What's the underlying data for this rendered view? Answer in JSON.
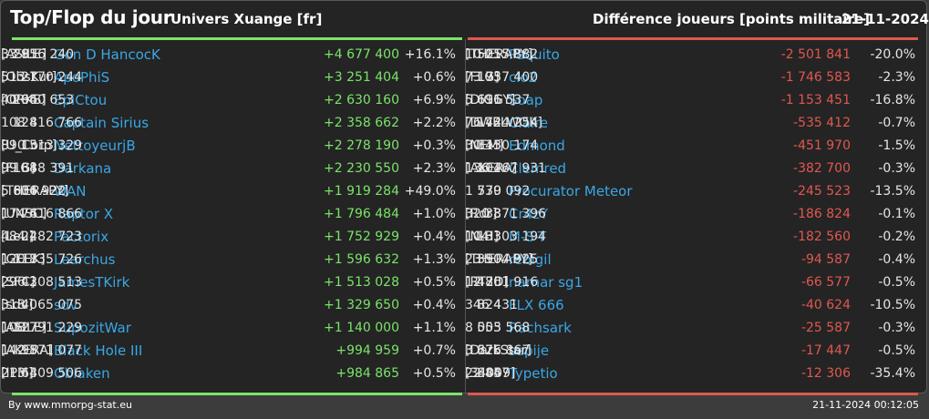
{
  "header": {
    "title": "Top/Flop du jour",
    "universe": "Univers Xuange [fr]",
    "metric": "Différence joueurs [points militaire]",
    "date": "21-11-2024"
  },
  "colors": {
    "gain": "#7be36a",
    "loss": "#e0584f",
    "link": "#3aa7e6"
  },
  "top": [
    {
      "rank": "295",
      "name": "Gon D HancocK",
      "alliance": "[ASILE]",
      "points": "33 816 240",
      "diff": "+4 677 400",
      "pct": "+16.1%"
    },
    {
      "rank": "21",
      "name": "ApoPhiS",
      "alliance": "[ObsKur]",
      "points": "513 770 244",
      "diff": "+3 251 404",
      "pct": "+0.6%"
    },
    {
      "rank": "264",
      "name": "EpiCtou",
      "alliance": "[ORKS]",
      "points": "40 960 653",
      "diff": "+2 630 160",
      "pct": "+6.9%"
    },
    {
      "rank": "128",
      "name": "Captain Sirius",
      "alliance": "",
      "points": "108 416 766",
      "diff": "+2 358 662",
      "pct": "+2.2%"
    },
    {
      "rank": "15",
      "name": "NettoyeurjB",
      "alliance": "[U_Corp]",
      "points": "890 313 329",
      "diff": "+2 278 190",
      "pct": "+0.3%"
    },
    {
      "rank": "138",
      "name": "Darkana",
      "alliance": "[FLG]",
      "points": "99 648 391",
      "diff": "+2 230 550",
      "pct": "+2.3%"
    },
    {
      "rank": "604",
      "name": "WAN",
      "alliance": "[THERAPY]",
      "points": "5 836 922",
      "diff": "+1 919 284",
      "pct": "+49.0%"
    },
    {
      "rank": "76",
      "name": "Raptor X",
      "alliance": "[UNSC]",
      "points": "174 416 866",
      "diff": "+1 796 484",
      "pct": "+1.0%"
    },
    {
      "rank": "24",
      "name": "Pactorix",
      "alliance": "[Leu]",
      "points": "484 282 723",
      "diff": "+1 752 929",
      "pct": "+0.4%"
    },
    {
      "rank": "117",
      "name": "Learchus",
      "alliance": "[GEEK]",
      "points": "120 835 726",
      "diff": "+1 596 632",
      "pct": "+1.3%"
    },
    {
      "rank": "42",
      "name": "JamesTKirk",
      "alliance": "[SFC]",
      "points": "296 308 513",
      "diff": "+1 513 028",
      "pct": "+0.5%"
    },
    {
      "rank": "40",
      "name": "sdv",
      "alliance": "[sdv]",
      "points": "318 065 075",
      "diff": "+1 329 650",
      "pct": "+0.4%"
    },
    {
      "rank": "127",
      "name": "SupozitWar",
      "alliance": "[ASILE]",
      "points": "108 791 229",
      "diff": "+1 140 000",
      "pct": "+1.1%"
    },
    {
      "rank": "98",
      "name": "Black Hole III",
      "alliance": "[AKERA]",
      "points": "142 571 077",
      "diff": "+994 959",
      "pct": "+0.7%"
    },
    {
      "rank": "64",
      "name": "Oblaken",
      "alliance": "[IPM]",
      "points": "213 309 506",
      "diff": "+984 865",
      "pct": "+0.5%"
    }
  ],
  "flop": [
    {
      "rank": "525",
      "name": "Paquito",
      "alliance": "[THERAPY]",
      "points": "10 015 882",
      "diff": "-2 501 841",
      "pct": "-20.0%"
    },
    {
      "rank": "175",
      "name": "clo2",
      "alliance": "[FLG]",
      "points": "73 937 400",
      "diff": "-1 746 583",
      "pct": "-2.3%"
    },
    {
      "rank": "611",
      "name": "Soap",
      "alliance": "[DIGGY]",
      "points": "5 696 537",
      "diff": "-1 153 451",
      "pct": "-16.8%"
    },
    {
      "rank": "172",
      "name": "Claire",
      "alliance": "[DWELWOK]",
      "points": "76 444 254",
      "diff": "-535 412",
      "pct": "-0.7%"
    },
    {
      "rank": "313",
      "name": "Edmond",
      "alliance": "[NEM]",
      "points": "30 450 174",
      "diff": "-451 970",
      "pct": "-1.5%"
    },
    {
      "rank": "104",
      "name": "Clemred",
      "alliance": "[AKERA]",
      "points": "136 267 931",
      "diff": "-382 700",
      "pct": "-0.3%"
    },
    {
      "rank": "739",
      "name": "Procurator Meteor",
      "alliance": "",
      "points": "1 570 092",
      "diff": "-245 523",
      "pct": "-13.5%"
    },
    {
      "rank": "38",
      "name": "Cr4zY",
      "alliance": "[Rdr]",
      "points": "320 371 396",
      "diff": "-186 824",
      "pct": "-0.1%"
    },
    {
      "rank": "133",
      "name": "M-S-T",
      "alliance": "[N-H]",
      "points": "104 303 194",
      "diff": "-182 560",
      "pct": "-0.2%"
    },
    {
      "rank": "350",
      "name": "rebigil",
      "alliance": "[THERAPY]",
      "points": "23 904 925",
      "diff": "-94 587",
      "pct": "-0.4%"
    },
    {
      "rank": "480",
      "name": "narnar sg1",
      "alliance": "[RT2D]",
      "points": "12 761 916",
      "diff": "-66 577",
      "pct": "-0.5%"
    },
    {
      "rank": "824",
      "name": "FLX 666",
      "alliance": "",
      "points": "346 431",
      "diff": "-40 624",
      "pct": "-10.5%"
    },
    {
      "rank": "555",
      "name": "Rachsark",
      "alliance": "",
      "points": "8 003 568",
      "diff": "-25 587",
      "pct": "-0.3%"
    },
    {
      "rank": "676",
      "name": "sapije",
      "alliance": "[DarkStar]",
      "points": "3 325 867",
      "diff": "-17 447",
      "pct": "-0.5%"
    },
    {
      "rank": "884",
      "name": "Typetio",
      "alliance": "[34009]",
      "points": "22 457",
      "diff": "-12 306",
      "pct": "-35.4%"
    }
  ],
  "footer": {
    "credit": "By www.mmorpg-stat.eu",
    "timestamp": "21-11-2024 00:12:05"
  }
}
